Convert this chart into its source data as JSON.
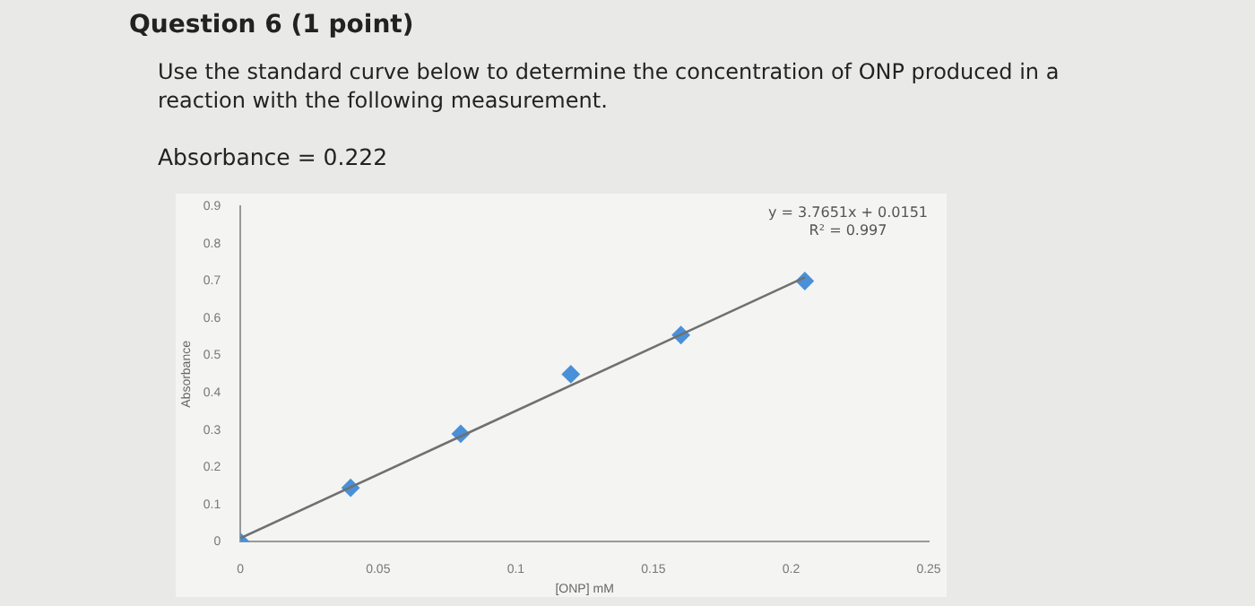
{
  "chart_data": {
    "type": "scatter",
    "title": "Question 6 (1 point)",
    "subtitle": "Use the standard curve below to determine the concentration of ONP produced in a reaction with the following measurement.",
    "annotations": [
      "Absorbance = 0.222",
      "y = 3.7651x + 0.0151",
      "R² = 0.997"
    ],
    "xlabel": "[ONP] mM",
    "ylabel": "Absorbance",
    "series": [
      {
        "type": "scatter",
        "color": "#4a90d9",
        "marker": "diamond",
        "x": [
          0,
          0.04,
          0.08,
          0.12,
          0.16,
          0.205
        ],
        "values": [
          0,
          0.145,
          0.29,
          0.45,
          0.555,
          0.7
        ]
      },
      {
        "type": "line",
        "color": "#707070",
        "line_style": "solid",
        "x": [
          0,
          0.205
        ],
        "values": [
          0.01,
          0.71
        ]
      }
    ],
    "xlim": [
      0,
      0.25
    ],
    "xticks": [
      0,
      0.05,
      0.1,
      0.15,
      0.2,
      0.25
    ],
    "ylim": [
      0,
      0.9
    ],
    "yticks": [
      0,
      0.1,
      0.2,
      0.3,
      0.4,
      0.5,
      0.6,
      0.7,
      0.8,
      0.9
    ],
    "grid": false,
    "legend": false
  }
}
